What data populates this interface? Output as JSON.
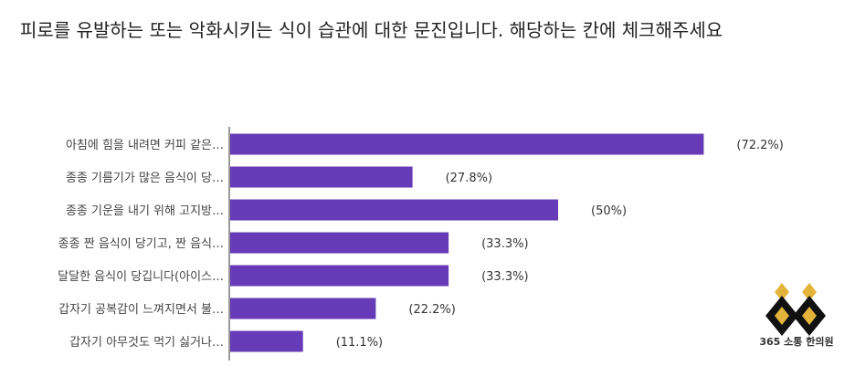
{
  "question": "피로를 유발하는 또는 악화시키는 식이 습관에 대한 문진입니다. 해당하는 칸에 체크해주세요",
  "chart_data": {
    "type": "bar",
    "orientation": "horizontal",
    "categories": [
      "아침에 힘을 내려면 커피 같은…",
      "종종 기름기가 많은 음식이 당…",
      "종종 기운을 내기 위해 고지방…",
      "종종 짠 음식이 당기고, 짠 음식…",
      "달달한 음식이 당깁니다(아이스…",
      "갑자기 공복감이 느껴지면서 불…",
      "갑자기 아무것도 먹기 싫거나…"
    ],
    "values": [
      72.2,
      27.8,
      50,
      33.3,
      33.3,
      22.2,
      11.1
    ],
    "value_labels": [
      "(72.2%)",
      "(27.8%)",
      "(50%)",
      "(33.3%)",
      "(33.3%)",
      "(22.2%)",
      "(11.1%)"
    ],
    "xlim": [
      0,
      100
    ],
    "bar_color": "#673ab7",
    "grid": false
  },
  "logo": {
    "text": "365 소통 한의원",
    "colors": {
      "gold": "#e2b43a",
      "dark": "#111111"
    }
  }
}
